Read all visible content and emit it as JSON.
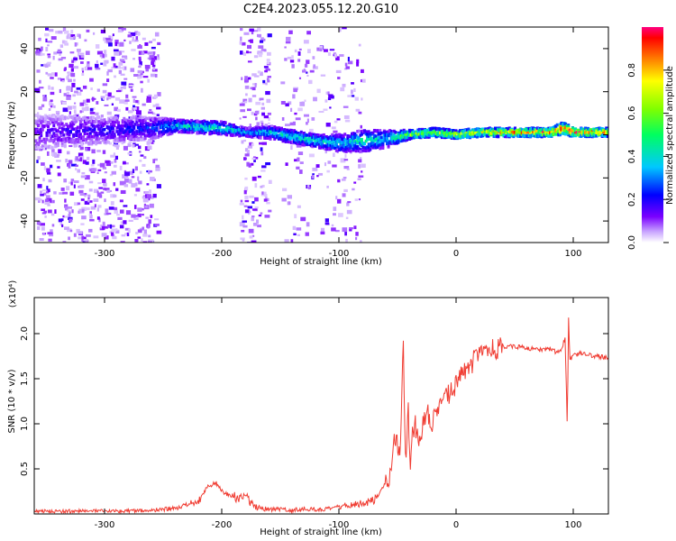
{
  "figure": {
    "title": "C2E4.2023.055.12.20.G10"
  },
  "chart_data": [
    {
      "type": "heatmap",
      "title": "C2E4.2023.055.12.20.G10",
      "xlabel": "Height of straight line (km)",
      "ylabel": "Frequency (Hz)",
      "xlim": [
        -360,
        130
      ],
      "ylim": [
        -50,
        50
      ],
      "xticks": [
        -300,
        -200,
        -100,
        0,
        100
      ],
      "yticks": [
        -40,
        -20,
        0,
        20,
        40
      ],
      "colorbar": {
        "label": "Normalized spectral amplitude",
        "range": [
          0,
          1
        ],
        "ticks": [
          0.0,
          0.2,
          0.4,
          0.6,
          0.8
        ],
        "colormap": "rainbow"
      },
      "band": {
        "x": [
          -360,
          -300,
          -260,
          -240,
          -200,
          -180,
          -160,
          -140,
          -120,
          -100,
          -80,
          -60,
          -40,
          -20,
          0,
          20,
          40,
          60,
          80,
          90,
          100,
          130
        ],
        "center": [
          1,
          2,
          3,
          4,
          3,
          1,
          1,
          -1,
          -3,
          -4,
          -3,
          -2,
          0,
          1,
          0,
          1,
          1,
          1,
          1,
          3,
          1,
          1
        ],
        "halfwidth": [
          8,
          6,
          5,
          3,
          3,
          2,
          3,
          3,
          3,
          4,
          5,
          4,
          2,
          2,
          2,
          2,
          2,
          2,
          2,
          3,
          2,
          2
        ],
        "amplitude": [
          0.15,
          0.2,
          0.25,
          0.4,
          0.45,
          0.35,
          0.4,
          0.45,
          0.45,
          0.4,
          0.45,
          0.4,
          0.65,
          0.65,
          0.7,
          0.75,
          0.8,
          0.85,
          0.9,
          0.95,
          0.9,
          0.85
        ]
      },
      "noise_regions": [
        {
          "x": [
            -360,
            -255
          ],
          "density": 0.9
        },
        {
          "x": [
            -185,
            -160
          ],
          "density": 0.8
        },
        {
          "x": [
            -150,
            -80
          ],
          "density": 0.35
        }
      ]
    },
    {
      "type": "line",
      "xlabel": "Height of straight line (km)",
      "ylabel": "SNR (10 * v/v)",
      "yscale_label": "(x10⁴)",
      "xlim": [
        -360,
        130
      ],
      "ylim": [
        0,
        2.4
      ],
      "xticks": [
        -300,
        -200,
        -100,
        0,
        100
      ],
      "yticks": [
        0.5,
        1.0,
        1.5,
        2.0
      ],
      "series": [
        {
          "color": "#f03c32",
          "x": [
            -360,
            -340,
            -320,
            -300,
            -280,
            -260,
            -250,
            -240,
            -230,
            -220,
            -212,
            -205,
            -200,
            -195,
            -190,
            -185,
            -180,
            -175,
            -170,
            -160,
            -150,
            -140,
            -130,
            -120,
            -110,
            -100,
            -90,
            -80,
            -70,
            -62,
            -56,
            -52,
            -48,
            -45,
            -43,
            -41,
            -39,
            -37,
            -35,
            -32,
            -28,
            -24,
            -20,
            -16,
            -12,
            -8,
            -4,
            0,
            5,
            10,
            15,
            20,
            25,
            30,
            40,
            50,
            60,
            70,
            80,
            85,
            90,
            93,
            95,
            96,
            97,
            100,
            105,
            110,
            115,
            120,
            125,
            130
          ],
          "y": [
            0.03,
            0.03,
            0.035,
            0.03,
            0.035,
            0.04,
            0.05,
            0.06,
            0.09,
            0.15,
            0.3,
            0.35,
            0.25,
            0.22,
            0.2,
            0.18,
            0.2,
            0.12,
            0.07,
            0.05,
            0.05,
            0.04,
            0.06,
            0.05,
            0.05,
            0.08,
            0.1,
            0.12,
            0.15,
            0.3,
            0.45,
            0.9,
            0.6,
            1.9,
            0.5,
            1.2,
            0.6,
            0.9,
            1.0,
            0.8,
            1.0,
            1.1,
            1.0,
            1.15,
            1.2,
            1.3,
            1.35,
            1.45,
            1.55,
            1.6,
            1.7,
            1.75,
            1.8,
            1.82,
            1.85,
            1.86,
            1.84,
            1.82,
            1.83,
            1.8,
            1.82,
            1.95,
            0.95,
            2.2,
            1.7,
            1.75,
            1.78,
            1.77,
            1.76,
            1.75,
            1.74,
            1.73
          ]
        }
      ]
    }
  ]
}
